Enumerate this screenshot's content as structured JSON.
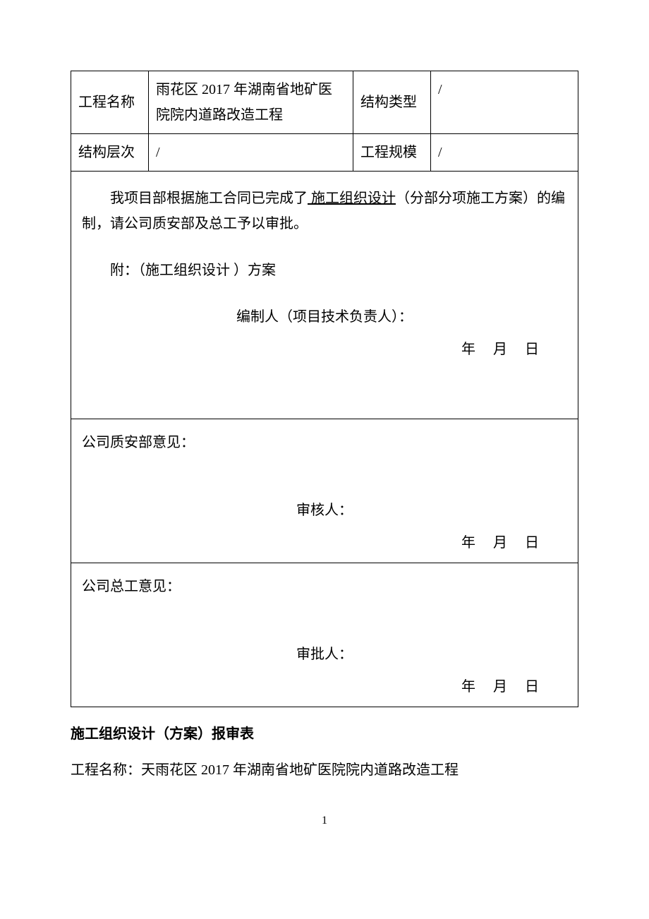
{
  "header": {
    "labels": {
      "projectName": "工程名称",
      "structureType": "结构类型",
      "structureLevel": "结构层次",
      "projectScale": "工程规模"
    },
    "values": {
      "projectName": "雨花区 2017 年湖南省地矿医院院内道路改造工程",
      "structureType": "/",
      "structureLevel": "/",
      "projectScale": "/"
    }
  },
  "body": {
    "para1_prefix": "我项目部根据施工合同已完成了",
    "para1_underline": " 施工组织设计",
    "para1_suffix": "（分部分项施工方案）的编制，请公司质安部及总工予以审批。",
    "attachment": "附：（施工组织设计 ）方案",
    "compiler": "编制人（项目技术负责人）：",
    "dateLine": "年  月  日"
  },
  "qaSection": {
    "title": "公司质安部意见：",
    "reviewer": "审核人：",
    "dateLine": "年  月  日"
  },
  "chiefSection": {
    "title": "公司总工意见：",
    "approver": "审批人：",
    "dateLine": "年  月  日"
  },
  "footer": {
    "title": "施工组织设计（方案）报审表",
    "projectLine": "工程名称：天雨花区 2017 年湖南省地矿医院院内道路改造工程"
  },
  "pageNumber": "1",
  "style": {
    "background": "#ffffff",
    "textColor": "#000000",
    "borderColor": "#000000",
    "fontSize": 20,
    "pageWidth": 920,
    "pageHeight": 1302
  }
}
